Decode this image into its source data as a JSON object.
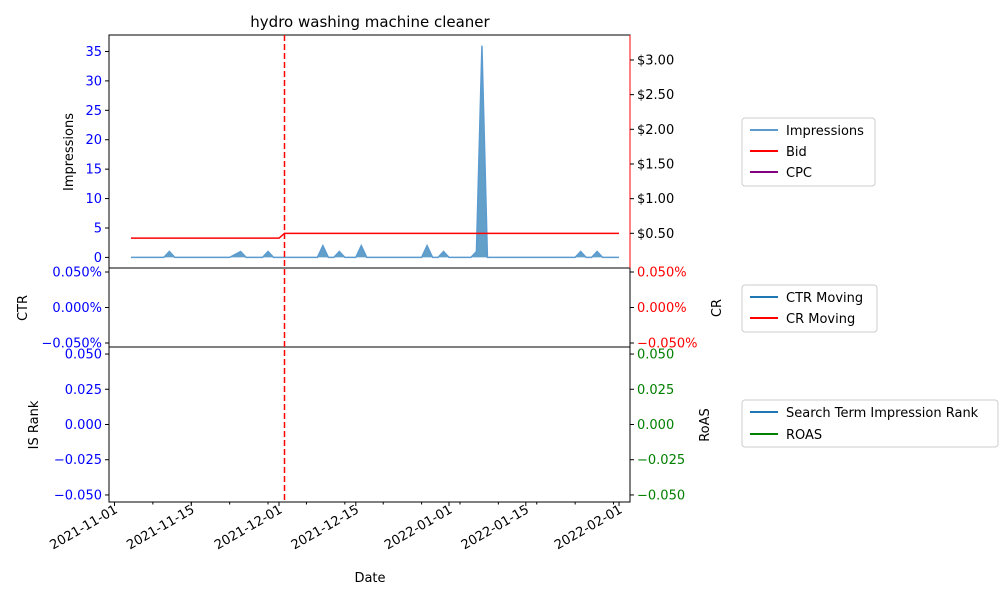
{
  "chart_data": [
    {
      "panel": "top",
      "type": "area",
      "title": "hydro washing machine cleaner",
      "ylabel": "Impressions",
      "ylim": [
        -1.8,
        37.8
      ],
      "yticks": [
        0,
        5,
        10,
        15,
        20,
        25,
        30,
        35
      ],
      "y2lim": [
        0.0,
        3.36
      ],
      "y2ticks": [
        0.5,
        1.0,
        1.5,
        2.0,
        2.5,
        3.0
      ],
      "y2ticklabels": [
        "$0.50",
        "$1.00",
        "$1.50",
        "$2.00",
        "$2.50",
        "$3.00"
      ],
      "vline": "2021-12-02",
      "series": [
        {
          "name": "Impressions",
          "color": "#5b9bd0",
          "points": [
            [
              "2021-11-04",
              0
            ],
            [
              "2021-11-10",
              0
            ],
            [
              "2021-11-11",
              1
            ],
            [
              "2021-11-12",
              0
            ],
            [
              "2021-11-22",
              0
            ],
            [
              "2021-11-24",
              1
            ],
            [
              "2021-11-25",
              0
            ],
            [
              "2021-11-28",
              0
            ],
            [
              "2021-11-29",
              1
            ],
            [
              "2021-11-30",
              0
            ],
            [
              "2021-12-08",
              0
            ],
            [
              "2021-12-09",
              2
            ],
            [
              "2021-12-10",
              0
            ],
            [
              "2021-12-11",
              0
            ],
            [
              "2021-12-12",
              1
            ],
            [
              "2021-12-13",
              0
            ],
            [
              "2021-12-15",
              0
            ],
            [
              "2021-12-16",
              2
            ],
            [
              "2021-12-17",
              0
            ],
            [
              "2021-12-27",
              0
            ],
            [
              "2021-12-28",
              2
            ],
            [
              "2021-12-29",
              0
            ],
            [
              "2021-12-30",
              0
            ],
            [
              "2021-12-31",
              1
            ],
            [
              "2022-01-01",
              0
            ],
            [
              "2022-01-05",
              0
            ],
            [
              "2022-01-06",
              1
            ],
            [
              "2022-01-07",
              36
            ],
            [
              "2022-01-08",
              0
            ],
            [
              "2022-01-24",
              0
            ],
            [
              "2022-01-25",
              1
            ],
            [
              "2022-01-26",
              0
            ],
            [
              "2022-01-27",
              0
            ],
            [
              "2022-01-28",
              1
            ],
            [
              "2022-01-29",
              0
            ],
            [
              "2022-02-01",
              0
            ]
          ]
        },
        {
          "name": "Bid",
          "color": "#ff0000",
          "axis": "right",
          "points": [
            [
              "2021-11-04",
              0.43
            ],
            [
              "2021-12-01",
              0.43
            ],
            [
              "2021-12-02",
              0.5
            ],
            [
              "2022-02-01",
              0.5
            ]
          ]
        },
        {
          "name": "CPC",
          "color": "#800080",
          "axis": "right",
          "points": []
        }
      ]
    },
    {
      "panel": "middle",
      "type": "line",
      "ylabel": "CTR",
      "y2label": "CR",
      "ylim": [
        -0.05,
        0.05
      ],
      "yticklabels": [
        "0.050%",
        "0.000%",
        "−0.050%"
      ],
      "y2ticklabels": [
        "0.050%",
        "0.000%",
        "−0.050%"
      ],
      "series": [
        {
          "name": "CTR Moving",
          "color": "#1f77b4",
          "points": []
        },
        {
          "name": "CR Moving",
          "color": "#ff0000",
          "points": []
        }
      ]
    },
    {
      "panel": "bottom",
      "type": "line",
      "ylabel": "IS Rank",
      "y2label": "RoAS",
      "ylim": [
        -0.055,
        0.055
      ],
      "yticklabels": [
        "0.050",
        "0.025",
        "0.000",
        "−0.025",
        "−0.050"
      ],
      "y2ticklabels": [
        "0.050",
        "0.025",
        "0.000",
        "−0.025",
        "−0.050"
      ],
      "xlabel": "Date",
      "xticks": [
        "2021-11-01",
        "2021-11-15",
        "2021-12-01",
        "2021-12-15",
        "2022-01-01",
        "2022-01-15",
        "2022-02-01"
      ],
      "series": [
        {
          "name": "Search Term Impression Rank",
          "color": "#1f77b4",
          "points": []
        },
        {
          "name": "ROAS",
          "color": "#008000",
          "points": []
        }
      ]
    }
  ],
  "labels": {
    "title": "hydro washing machine cleaner",
    "impressions_axis": "Impressions",
    "ctr_axis": "CTR",
    "cr_axis": "CR",
    "isrank_axis": "IS Rank",
    "roas_axis": "RoAS",
    "date_axis": "Date"
  },
  "ticks": {
    "impressions": [
      "0",
      "5",
      "10",
      "15",
      "20",
      "25",
      "30",
      "35"
    ],
    "bid": [
      "$0.50",
      "$1.00",
      "$1.50",
      "$2.00",
      "$2.50",
      "$3.00"
    ],
    "ctr": [
      "0.050%",
      "0.000%",
      "−0.050%"
    ],
    "cr": [
      "0.050%",
      "0.000%",
      "−0.050%"
    ],
    "isrank": [
      "0.050",
      "0.025",
      "0.000",
      "−0.025",
      "−0.050"
    ],
    "roas": [
      "0.050",
      "0.025",
      "0.000",
      "−0.025",
      "−0.050"
    ],
    "dates": [
      "2021-11-01",
      "2021-11-15",
      "2021-12-01",
      "2021-12-15",
      "2022-01-01",
      "2022-01-15",
      "2022-02-01"
    ]
  },
  "legends": {
    "top": [
      "Impressions",
      "Bid",
      "CPC"
    ],
    "middle": [
      "CTR Moving",
      "CR Moving"
    ],
    "bottom": [
      "Search Term Impression Rank",
      "ROAS"
    ]
  },
  "colors": {
    "impressions": "#5b9bd0",
    "impressions_fill": "#1f77b4",
    "bid": "#ff0000",
    "cpc": "#800080",
    "ctr": "#1f77b4",
    "cr": "#ff0000",
    "isrank": "#1f77b4",
    "roas": "#008000",
    "left_tick": "#0000ff",
    "right_tick_top": "#ff0000",
    "right_tick_bottom": "#008000"
  }
}
